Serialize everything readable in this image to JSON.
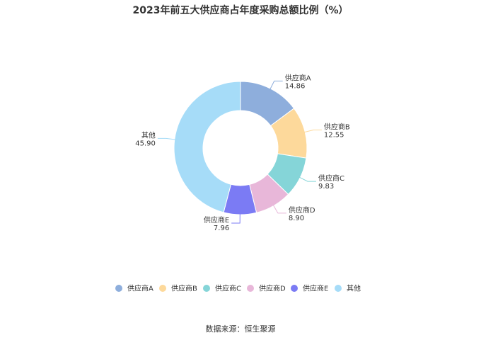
{
  "chart_data": {
    "type": "pie",
    "title": "2023年前五大供应商占年度采购总额比例（%）",
    "categories": [
      "供应商A",
      "供应商B",
      "供应商C",
      "供应商D",
      "供应商E",
      "其他"
    ],
    "values": [
      14.86,
      12.55,
      9.83,
      8.9,
      7.96,
      45.9
    ],
    "value_labels": [
      "14.86",
      "12.55",
      "9.83",
      "8.90",
      "7.96",
      "45.90"
    ],
    "colors": [
      "#8eaedc",
      "#fdd99b",
      "#85d5d8",
      "#e8b7d9",
      "#7b7bf4",
      "#a6dcf8"
    ],
    "donut": true,
    "legend_position": "bottom"
  },
  "source": "数据来源：恒生聚源"
}
